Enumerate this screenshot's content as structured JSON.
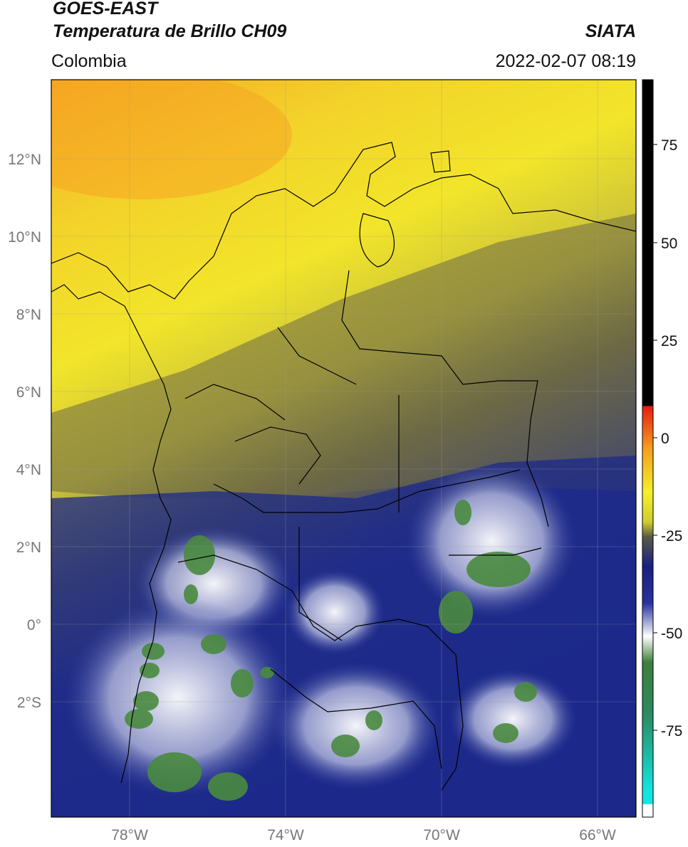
{
  "header": {
    "satellite": "GOES-EAST",
    "product": "Temperatura de Brillo CH09",
    "source": "SIATA",
    "region": "Colombia",
    "datetime": "2022-02-07 08:19"
  },
  "map": {
    "lon_ticks": [
      "78°W",
      "74°W",
      "70°W",
      "66°W"
    ],
    "lat_ticks": [
      "12°N",
      "10°N",
      "8°N",
      "6°N",
      "4°N",
      "2°N",
      "0°",
      "2°S"
    ],
    "colors": {
      "warm_yellow": "#f2e52a",
      "orange": "#f5a623",
      "olive": "#6e6a45",
      "navy": "#1c2a8a",
      "cloud_white": "#eef0f8",
      "deep_green": "#4a8a40",
      "coastline": "#000000"
    }
  },
  "colorbar": {
    "ticks": [
      "75",
      "50",
      "25",
      "0",
      "-25",
      "-50",
      "-75"
    ],
    "colors": {
      "top": "#000000",
      "red": "#e81d12",
      "orange": "#f59e1e",
      "yellow": "#f5f02a",
      "olive": "#595a47",
      "navy": "#1a1f80",
      "white": "#ffffff",
      "green": "#3d7f3a",
      "cyan": "#12e6e2"
    }
  }
}
